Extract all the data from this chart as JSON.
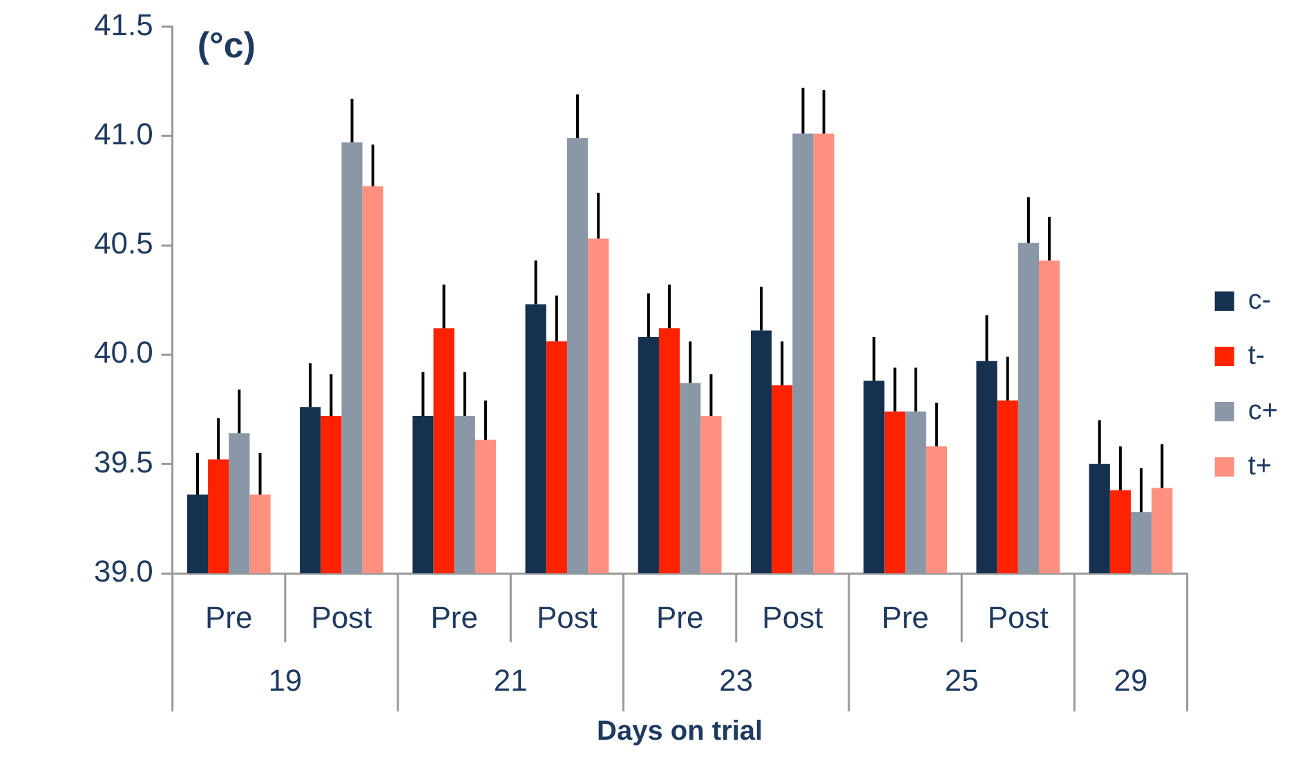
{
  "chart_data": {
    "type": "bar",
    "ylabel": "(°c)",
    "xlabel": "Days on trial",
    "categories": [
      "Pre",
      "Post",
      "Pre",
      "Post",
      "Pre",
      "Post",
      "Pre",
      "Post",
      null
    ],
    "annotations": [
      "19",
      "21",
      "23",
      "25",
      "29"
    ],
    "ylim": [
      39,
      41.5
    ],
    "yticks": [
      {
        "value": 39,
        "label": "39.0"
      },
      39.5,
      {
        "value": 40,
        "label": "40.0"
      },
      40.5,
      {
        "value": 41,
        "label": "41.0"
      },
      41.5
    ],
    "legend": "right",
    "series": [
      {
        "name": "c-",
        "color": "#16304f",
        "values": [
          39.36,
          39.76,
          39.72,
          40.23,
          40.08,
          40.11,
          39.88,
          39.97,
          39.5
        ],
        "errors": [
          [
            39.36,
            39.55
          ],
          [
            39.76,
            39.96
          ],
          [
            39.72,
            39.92
          ],
          [
            40.23,
            40.43
          ],
          [
            40.08,
            40.28
          ],
          [
            40.11,
            40.31
          ],
          [
            39.88,
            40.08
          ],
          [
            39.97,
            40.18
          ],
          [
            39.5,
            39.7
          ]
        ]
      },
      {
        "name": "t-",
        "color": "#ff2200",
        "values": [
          39.52,
          39.72,
          40.12,
          40.06,
          40.12,
          39.86,
          39.74,
          39.79,
          39.38
        ],
        "errors": [
          [
            39.52,
            39.71
          ],
          [
            39.72,
            39.91
          ],
          [
            40.12,
            40.32
          ],
          [
            40.06,
            40.27
          ],
          [
            40.12,
            40.32
          ],
          [
            39.86,
            40.06
          ],
          [
            39.74,
            39.94
          ],
          [
            39.79,
            39.99
          ],
          [
            39.38,
            39.58
          ]
        ]
      },
      {
        "name": "c+",
        "color": "#8a97a7",
        "values": [
          39.64,
          40.97,
          39.72,
          40.99,
          39.87,
          41.01,
          39.74,
          40.51,
          39.28
        ],
        "errors": [
          [
            39.64,
            39.84
          ],
          [
            40.97,
            41.17
          ],
          [
            39.72,
            39.92
          ],
          [
            40.99,
            41.19
          ],
          [
            39.87,
            40.06
          ],
          [
            41.01,
            41.22
          ],
          [
            39.74,
            39.94
          ],
          [
            40.51,
            40.72
          ],
          [
            39.28,
            39.48
          ]
        ]
      },
      {
        "name": "t+",
        "color": "#ff9080",
        "values": [
          39.36,
          40.77,
          39.61,
          40.53,
          39.72,
          41.01,
          39.58,
          40.43,
          39.39
        ],
        "errors": [
          [
            39.36,
            39.55
          ],
          [
            40.77,
            40.96
          ],
          [
            39.61,
            39.79
          ],
          [
            40.53,
            40.74
          ],
          [
            39.72,
            39.91
          ],
          [
            41.01,
            41.21
          ],
          [
            39.58,
            39.78
          ],
          [
            40.43,
            40.63
          ],
          [
            39.39,
            39.59
          ]
        ]
      }
    ]
  }
}
